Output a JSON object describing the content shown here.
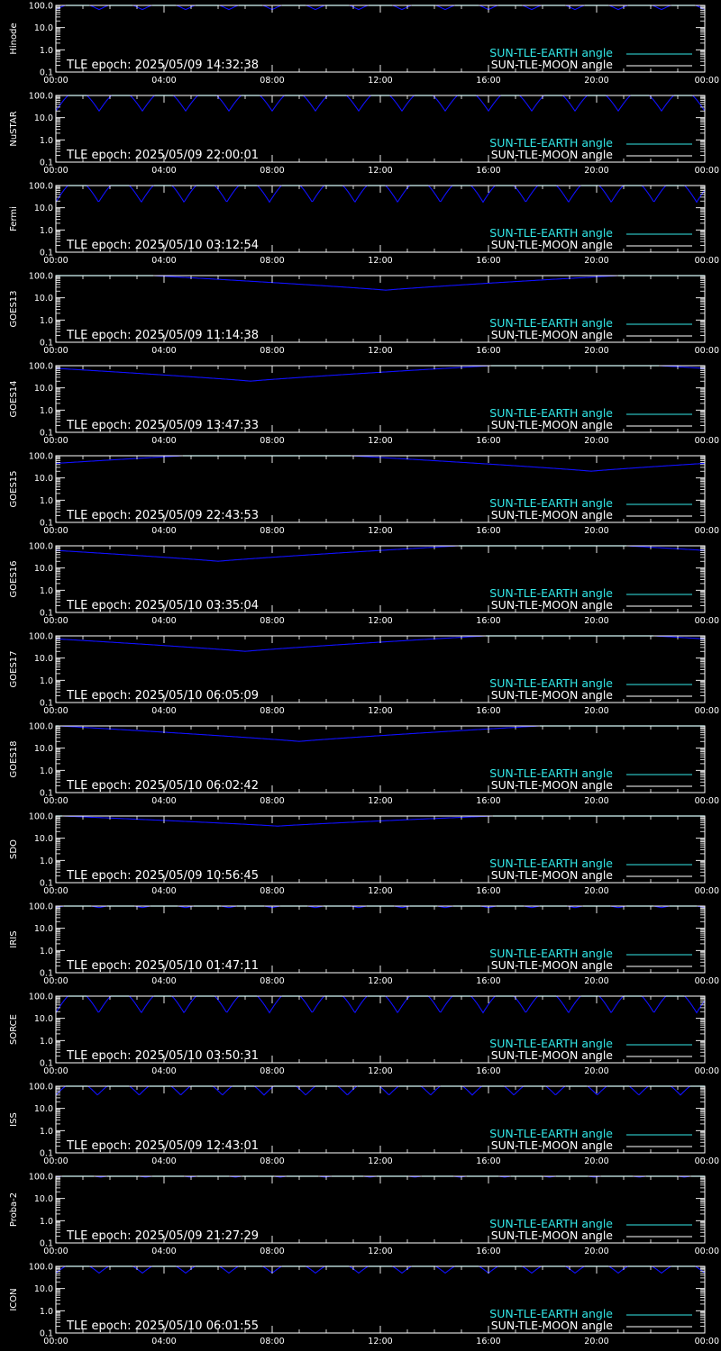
{
  "colors": {
    "background": "#000000",
    "axes": "#ffffff",
    "sun_tle_earth": "#33e8e8",
    "sun_tle_moon": "#ffffff",
    "depth_curve": "#1010ff"
  },
  "legend": {
    "earth_label": "SUN-TLE-EARTH angle",
    "moon_label": "SUN-TLE-MOON angle"
  },
  "chart_data": [
    {
      "type": "line",
      "satellite": "Hinode",
      "epoch": "TLE epoch: 2025/05/09 14:32:38",
      "x_ticks": [
        "00:00",
        "04:00",
        "08:00",
        "12:00",
        "16:00",
        "20:00",
        "00:00"
      ],
      "y_ticks": [
        "0.1",
        "1.0",
        "10.0",
        "100.0"
      ],
      "y_scale": "log",
      "ylim": [
        0.1,
        100
      ],
      "curve": {
        "kind": "periodic",
        "period_hours": 1.6,
        "max": 130,
        "min": 65
      },
      "moon_angle": 100
    },
    {
      "type": "line",
      "satellite": "NuSTAR",
      "epoch": "TLE epoch: 2025/05/09 22:00:01",
      "x_ticks": [
        "00:00",
        "04:00",
        "08:00",
        "12:00",
        "16:00",
        "20:00",
        "00:00"
      ],
      "y_ticks": [
        "0.1",
        "1.0",
        "10.0",
        "100.0"
      ],
      "y_scale": "log",
      "ylim": [
        0.1,
        100
      ],
      "curve": {
        "kind": "periodic",
        "period_hours": 1.6,
        "max": 160,
        "min": 20
      },
      "moon_angle": 100
    },
    {
      "type": "line",
      "satellite": "Fermi",
      "epoch": "TLE epoch: 2025/05/10 03:12:54",
      "x_ticks": [
        "00:00",
        "04:00",
        "08:00",
        "12:00",
        "16:00",
        "20:00",
        "00:00"
      ],
      "y_ticks": [
        "0.1",
        "1.0",
        "10.0",
        "100.0"
      ],
      "y_scale": "log",
      "ylim": [
        0.1,
        100
      ],
      "curve": {
        "kind": "periodic",
        "period_hours": 1.58,
        "max": 165,
        "min": 18
      },
      "moon_angle": 100
    },
    {
      "type": "line",
      "satellite": "GOES13",
      "epoch": "TLE epoch: 2025/05/09 11:14:38",
      "x_ticks": [
        "00:00",
        "04:00",
        "08:00",
        "12:00",
        "16:00",
        "20:00",
        "00:00"
      ],
      "y_ticks": [
        "0.1",
        "1.0",
        "10.0",
        "100.0"
      ],
      "y_scale": "log",
      "ylim": [
        0.1,
        100
      ],
      "curve": {
        "kind": "daily",
        "min_hour": 12.2,
        "max": 170,
        "min": 22
      },
      "moon_angle": 100
    },
    {
      "type": "line",
      "satellite": "GOES14",
      "epoch": "TLE epoch: 2025/05/09 13:47:33",
      "x_ticks": [
        "00:00",
        "04:00",
        "08:00",
        "12:00",
        "16:00",
        "20:00",
        "00:00"
      ],
      "y_ticks": [
        "0.1",
        "1.0",
        "10.0",
        "100.0"
      ],
      "y_scale": "log",
      "ylim": [
        0.1,
        100
      ],
      "curve": {
        "kind": "daily",
        "min_hour": 7.2,
        "max": 165,
        "min": 20
      },
      "moon_angle": 100
    },
    {
      "type": "line",
      "satellite": "GOES15",
      "epoch": "TLE epoch: 2025/05/09 22:43:53",
      "x_ticks": [
        "00:00",
        "04:00",
        "08:00",
        "12:00",
        "16:00",
        "20:00",
        "00:00"
      ],
      "y_ticks": [
        "0.1",
        "1.0",
        "10.0",
        "100.0"
      ],
      "y_scale": "log",
      "ylim": [
        0.1,
        100
      ],
      "curve": {
        "kind": "daily",
        "min_hour": 19.8,
        "max": 165,
        "min": 20
      },
      "moon_angle": 100
    },
    {
      "type": "line",
      "satellite": "GOES16",
      "epoch": "TLE epoch: 2025/05/10 03:35:04",
      "x_ticks": [
        "00:00",
        "04:00",
        "08:00",
        "12:00",
        "16:00",
        "20:00",
        "00:00"
      ],
      "y_ticks": [
        "0.1",
        "1.0",
        "10.0",
        "100.0"
      ],
      "y_scale": "log",
      "ylim": [
        0.1,
        100
      ],
      "curve": {
        "kind": "daily",
        "min_hour": 6.0,
        "max": 165,
        "min": 20
      },
      "moon_angle": 100
    },
    {
      "type": "line",
      "satellite": "GOES17",
      "epoch": "TLE epoch: 2025/05/10 06:05:09",
      "x_ticks": [
        "00:00",
        "04:00",
        "08:00",
        "12:00",
        "16:00",
        "20:00",
        "00:00"
      ],
      "y_ticks": [
        "0.1",
        "1.0",
        "10.0",
        "100.0"
      ],
      "y_scale": "log",
      "ylim": [
        0.1,
        100
      ],
      "curve": {
        "kind": "daily",
        "min_hour": 7.0,
        "max": 165,
        "min": 20
      },
      "moon_angle": 100
    },
    {
      "type": "line",
      "satellite": "GOES18",
      "epoch": "TLE epoch: 2025/05/10 06:02:42",
      "x_ticks": [
        "00:00",
        "04:00",
        "08:00",
        "12:00",
        "16:00",
        "20:00",
        "00:00"
      ],
      "y_ticks": [
        "0.1",
        "1.0",
        "10.0",
        "100.0"
      ],
      "y_scale": "log",
      "ylim": [
        0.1,
        100
      ],
      "curve": {
        "kind": "daily",
        "min_hour": 9.0,
        "max": 165,
        "min": 20
      },
      "moon_angle": 100
    },
    {
      "type": "line",
      "satellite": "SDO",
      "epoch": "TLE epoch: 2025/05/09 10:56:45",
      "x_ticks": [
        "00:00",
        "04:00",
        "08:00",
        "12:00",
        "16:00",
        "20:00",
        "00:00"
      ],
      "y_ticks": [
        "0.1",
        "1.0",
        "10.0",
        "100.0"
      ],
      "y_scale": "log",
      "ylim": [
        0.1,
        100
      ],
      "curve": {
        "kind": "daily",
        "min_hour": 8.2,
        "max": 160,
        "min": 35
      },
      "moon_angle": 100
    },
    {
      "type": "line",
      "satellite": "IRIS",
      "epoch": "TLE epoch: 2025/05/10 01:47:11",
      "x_ticks": [
        "00:00",
        "04:00",
        "08:00",
        "12:00",
        "16:00",
        "20:00",
        "00:00"
      ],
      "y_ticks": [
        "0.1",
        "1.0",
        "10.0",
        "100.0"
      ],
      "y_scale": "log",
      "ylim": [
        0.1,
        100
      ],
      "curve": {
        "kind": "periodic",
        "period_hours": 1.6,
        "max": 115,
        "min": 85
      },
      "moon_angle": 100
    },
    {
      "type": "line",
      "satellite": "SORCE",
      "epoch": "TLE epoch: 2025/05/10 03:50:31",
      "x_ticks": [
        "00:00",
        "04:00",
        "08:00",
        "12:00",
        "16:00",
        "20:00",
        "00:00"
      ],
      "y_ticks": [
        "0.1",
        "1.0",
        "10.0",
        "100.0"
      ],
      "y_scale": "log",
      "ylim": [
        0.1,
        100
      ],
      "curve": {
        "kind": "periodic",
        "period_hours": 1.58,
        "max": 165,
        "min": 18
      },
      "moon_angle": 100
    },
    {
      "type": "line",
      "satellite": "ISS",
      "epoch": "TLE epoch: 2025/05/09 12:43:01",
      "x_ticks": [
        "00:00",
        "04:00",
        "08:00",
        "12:00",
        "16:00",
        "20:00",
        "00:00"
      ],
      "y_ticks": [
        "0.1",
        "1.0",
        "10.0",
        "100.0"
      ],
      "y_scale": "log",
      "ylim": [
        0.1,
        100
      ],
      "curve": {
        "kind": "periodic",
        "period_hours": 1.54,
        "max": 160,
        "min": 40
      },
      "moon_angle": 100
    },
    {
      "type": "line",
      "satellite": "Proba-2",
      "epoch": "TLE epoch: 2025/05/09 21:27:29",
      "x_ticks": [
        "00:00",
        "04:00",
        "08:00",
        "12:00",
        "16:00",
        "20:00",
        "00:00"
      ],
      "y_ticks": [
        "0.1",
        "1.0",
        "10.0",
        "100.0"
      ],
      "y_scale": "log",
      "ylim": [
        0.1,
        100
      ],
      "curve": {
        "kind": "periodic",
        "period_hours": 1.66,
        "max": 112,
        "min": 92
      },
      "moon_angle": 100
    },
    {
      "type": "line",
      "satellite": "ICON",
      "epoch": "TLE epoch: 2025/05/10 06:01:55",
      "x_ticks": [
        "00:00",
        "04:00",
        "08:00",
        "12:00",
        "16:00",
        "20:00",
        "00:00"
      ],
      "y_ticks": [
        "0.1",
        "1.0",
        "10.0",
        "100.0"
      ],
      "y_scale": "log",
      "ylim": [
        0.1,
        100
      ],
      "curve": {
        "kind": "periodic",
        "period_hours": 1.6,
        "max": 150,
        "min": 50
      },
      "moon_angle": 100
    }
  ]
}
